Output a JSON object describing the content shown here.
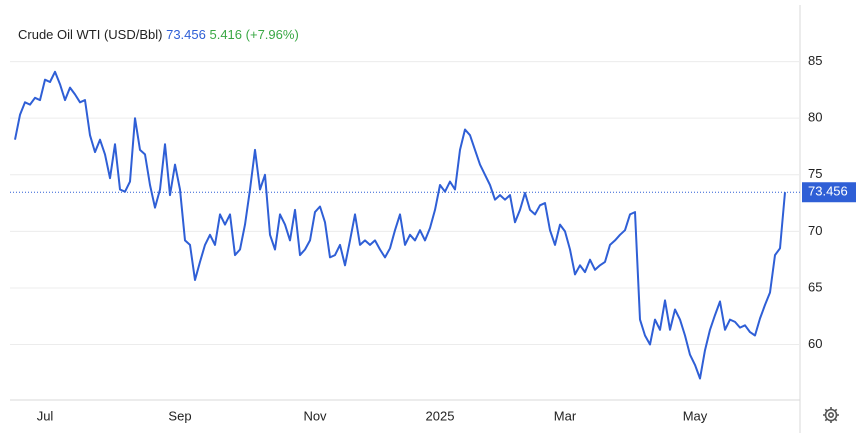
{
  "chart_data": {
    "type": "line",
    "title": "Crude Oil WTI (USD/Bbl)",
    "change": 5.416,
    "change_percent": "(+7.96%)",
    "color": "#2f5fd6",
    "change_color": "#3aa845",
    "grid": true,
    "ylim": [
      55.1,
      90
    ],
    "yticks": [
      60,
      65,
      70,
      75,
      80,
      85
    ],
    "categories": [
      null,
      null,
      null,
      null,
      null,
      null,
      "Jul",
      null,
      null,
      null,
      null,
      null,
      null,
      null,
      null,
      null,
      null,
      null,
      null,
      null,
      null,
      null,
      null,
      null,
      null,
      null,
      null,
      null,
      null,
      null,
      null,
      null,
      null,
      "Sep",
      null,
      null,
      null,
      null,
      null,
      null,
      null,
      null,
      null,
      null,
      null,
      null,
      null,
      null,
      null,
      null,
      null,
      null,
      null,
      null,
      null,
      null,
      null,
      null,
      null,
      null,
      "Nov",
      null,
      null,
      null,
      null,
      null,
      null,
      null,
      null,
      null,
      null,
      null,
      null,
      null,
      null,
      null,
      null,
      null,
      null,
      null,
      null,
      null,
      null,
      null,
      null,
      "2025",
      null,
      null,
      null,
      null,
      null,
      null,
      null,
      null,
      null,
      null,
      null,
      null,
      null,
      null,
      null,
      null,
      null,
      null,
      null,
      null,
      null,
      null,
      null,
      null,
      "Mar",
      null,
      null,
      null,
      null,
      null,
      null,
      null,
      null,
      null,
      null,
      null,
      null,
      null,
      null,
      null,
      null,
      null,
      null,
      null,
      null,
      null,
      null,
      null,
      null,
      null,
      "May",
      null,
      null,
      null,
      null,
      null,
      null,
      null,
      null,
      null,
      null,
      null,
      null,
      null,
      null,
      null,
      null,
      null,
      null
    ],
    "values": [
      78.1,
      80.3,
      81.4,
      81.2,
      81.8,
      81.6,
      83.4,
      83.2,
      84.1,
      83.0,
      81.6,
      82.7,
      82.1,
      81.4,
      81.6,
      78.5,
      77.0,
      78.1,
      76.8,
      74.7,
      77.7,
      73.7,
      73.5,
      74.4,
      80.0,
      77.2,
      76.8,
      74.1,
      72.1,
      73.7,
      77.7,
      73.2,
      75.9,
      73.7,
      69.2,
      68.8,
      65.7,
      67.3,
      68.8,
      69.7,
      68.8,
      71.5,
      70.6,
      71.5,
      67.9,
      68.4,
      70.6,
      73.7,
      77.2,
      73.7,
      75.0,
      69.7,
      68.4,
      71.5,
      70.6,
      69.2,
      71.9,
      67.9,
      68.4,
      69.2,
      71.7,
      72.2,
      70.8,
      67.7,
      67.9,
      68.8,
      67.0,
      69.2,
      71.5,
      68.8,
      69.2,
      68.8,
      69.2,
      68.4,
      67.7,
      68.5,
      70.1,
      71.5,
      68.8,
      69.7,
      69.2,
      70.1,
      69.2,
      70.3,
      71.9,
      74.1,
      73.5,
      74.4,
      73.7,
      77.2,
      79.0,
      78.5,
      77.2,
      75.9,
      75.0,
      74.1,
      72.8,
      73.2,
      72.8,
      73.2,
      70.8,
      71.9,
      73.4,
      71.9,
      71.5,
      72.3,
      72.5,
      70.1,
      68.8,
      70.6,
      70.0,
      68.4,
      66.2,
      67.0,
      66.4,
      67.5,
      66.6,
      67.0,
      67.3,
      68.8,
      69.2,
      69.7,
      70.1,
      71.5,
      71.7,
      62.2,
      60.8,
      60.0,
      62.2,
      61.3,
      63.9,
      61.3,
      63.1,
      62.2,
      60.8,
      59.1,
      58.2,
      57.0,
      59.5,
      61.3,
      62.6,
      63.8,
      61.3,
      62.2,
      62.0,
      61.5,
      61.7,
      61.1,
      60.8,
      62.3,
      63.5,
      64.6,
      67.9,
      68.5,
      73.456
    ]
  }
}
